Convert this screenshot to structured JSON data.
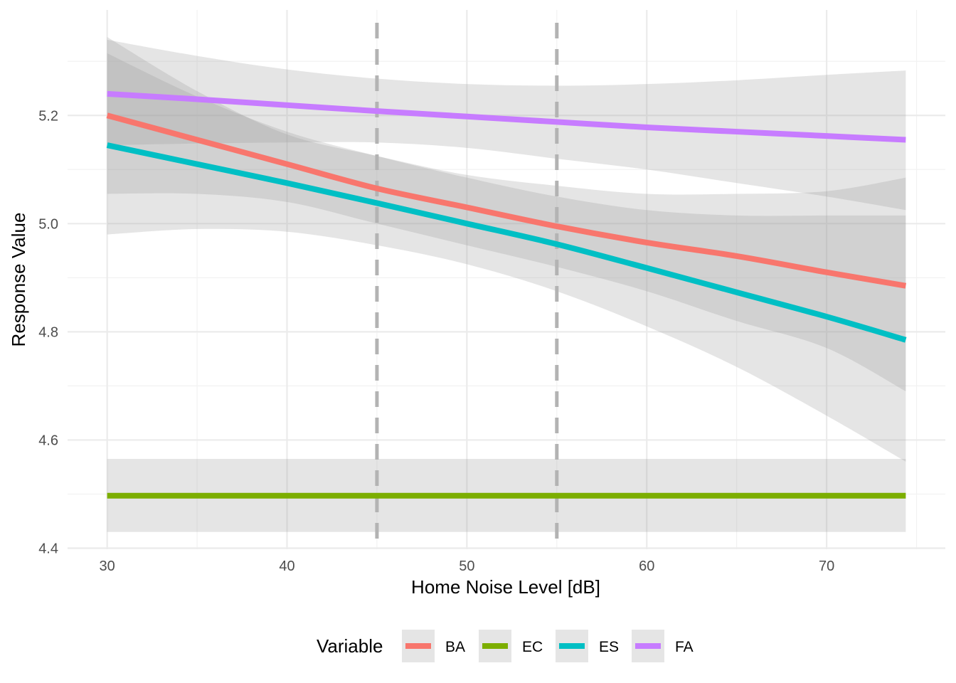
{
  "chart_data": {
    "type": "line",
    "title": "",
    "xlabel": "Home Noise Level [dB]",
    "ylabel": "Response Value",
    "xlim": [
      27.8,
      76.6
    ],
    "ylim": [
      4.398,
      5.395
    ],
    "x_ticks": [
      30,
      40,
      50,
      60,
      70
    ],
    "x_tick_labels": [
      "30",
      "40",
      "50",
      "60",
      "70"
    ],
    "y_ticks": [
      4.4,
      4.6,
      4.8,
      5.0,
      5.2
    ],
    "y_tick_labels": [
      "4.4",
      "4.6",
      "4.8",
      "5.0",
      "5.2"
    ],
    "grid": true,
    "reference_lines": [
      45,
      55
    ],
    "reference_line_color": "#b3b3b3",
    "ribbon_color": "#999999",
    "legend": {
      "title": "Variable",
      "position": "bottom"
    },
    "series": [
      {
        "name": "BA",
        "color": "#F8766D",
        "x": [
          30,
          35,
          40,
          45,
          50,
          55,
          60,
          65,
          70,
          74.4
        ],
        "y": [
          5.2,
          5.155,
          5.11,
          5.065,
          5.03,
          4.995,
          4.965,
          4.94,
          4.91,
          4.885
        ],
        "lower": [
          5.055,
          5.055,
          5.04,
          5.0,
          4.96,
          4.92,
          4.875,
          4.82,
          4.77,
          4.69
        ],
        "upper": [
          5.345,
          5.245,
          5.165,
          5.125,
          5.09,
          5.07,
          5.055,
          5.055,
          5.06,
          5.085
        ]
      },
      {
        "name": "EC",
        "color": "#7CAE00",
        "x": [
          30,
          40,
          50,
          60,
          70,
          74.4
        ],
        "y": [
          4.497,
          4.497,
          4.497,
          4.497,
          4.497,
          4.497
        ],
        "lower": [
          4.43,
          4.43,
          4.43,
          4.43,
          4.43,
          4.43
        ],
        "upper": [
          4.565,
          4.565,
          4.565,
          4.565,
          4.565,
          4.565
        ]
      },
      {
        "name": "ES",
        "color": "#00BFC4",
        "x": [
          30,
          35,
          40,
          45,
          50,
          55,
          60,
          65,
          70,
          74.4
        ],
        "y": [
          5.145,
          5.11,
          5.075,
          5.038,
          5.0,
          4.962,
          4.918,
          4.873,
          4.828,
          4.785
        ],
        "lower": [
          4.98,
          4.99,
          4.985,
          4.96,
          4.925,
          4.875,
          4.81,
          4.735,
          4.645,
          4.56
        ],
        "upper": [
          5.315,
          5.235,
          5.17,
          5.125,
          5.085,
          5.05,
          5.025,
          5.015,
          5.015,
          5.015
        ]
      },
      {
        "name": "FA",
        "color": "#C77CFF",
        "x": [
          30,
          35,
          40,
          45,
          50,
          55,
          60,
          65,
          70,
          74.4
        ],
        "y": [
          5.24,
          5.23,
          5.219,
          5.208,
          5.198,
          5.188,
          5.178,
          5.17,
          5.162,
          5.155
        ],
        "lower": [
          5.145,
          5.148,
          5.15,
          5.15,
          5.14,
          5.12,
          5.1,
          5.075,
          5.05,
          5.025
        ],
        "upper": [
          5.34,
          5.31,
          5.285,
          5.268,
          5.258,
          5.255,
          5.258,
          5.265,
          5.275,
          5.283
        ]
      }
    ]
  }
}
